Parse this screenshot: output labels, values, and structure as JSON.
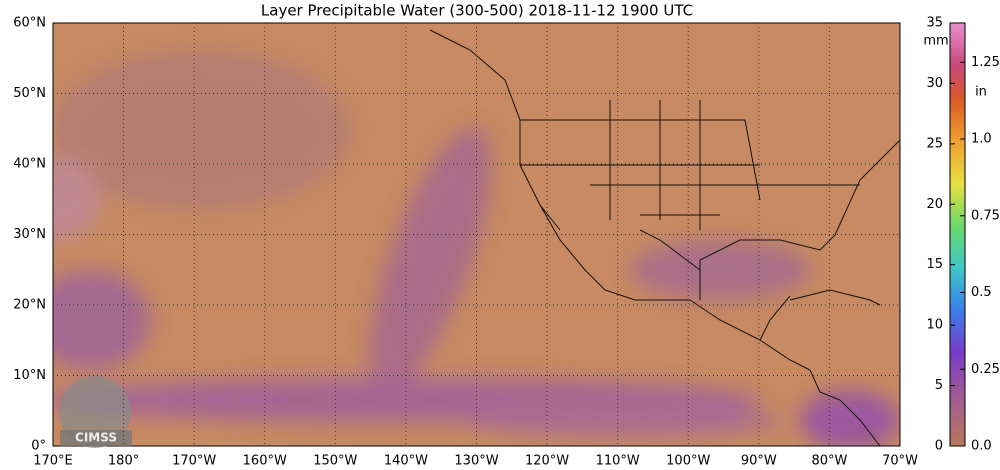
{
  "title": "Layer Precipitable Water (300-500)  2018-11-12 1900 UTC",
  "map": {
    "lat_labels": [
      "60°N",
      "50°N",
      "40°N",
      "30°N",
      "20°N",
      "10°N",
      "0°"
    ],
    "lon_labels": [
      "170°E",
      "180°",
      "170°W",
      "160°W",
      "150°W",
      "140°W",
      "130°W",
      "120°W",
      "110°W",
      "100°W",
      "90°W",
      "80°W",
      "70°W"
    ]
  },
  "colorbar": {
    "mm_unit": "mm",
    "mm_range": [
      0,
      35
    ],
    "mm_ticks": [
      0,
      5,
      10,
      15,
      20,
      25,
      30,
      35
    ],
    "in_unit": "in",
    "in_range": [
      0,
      1.378
    ],
    "in_ticks": [
      {
        "value": 0,
        "label": "0.0"
      },
      0.25,
      0.5,
      0.75,
      {
        "value": 1,
        "label": "1.0"
      },
      1.25
    ]
  },
  "logo": "CIMSS"
}
